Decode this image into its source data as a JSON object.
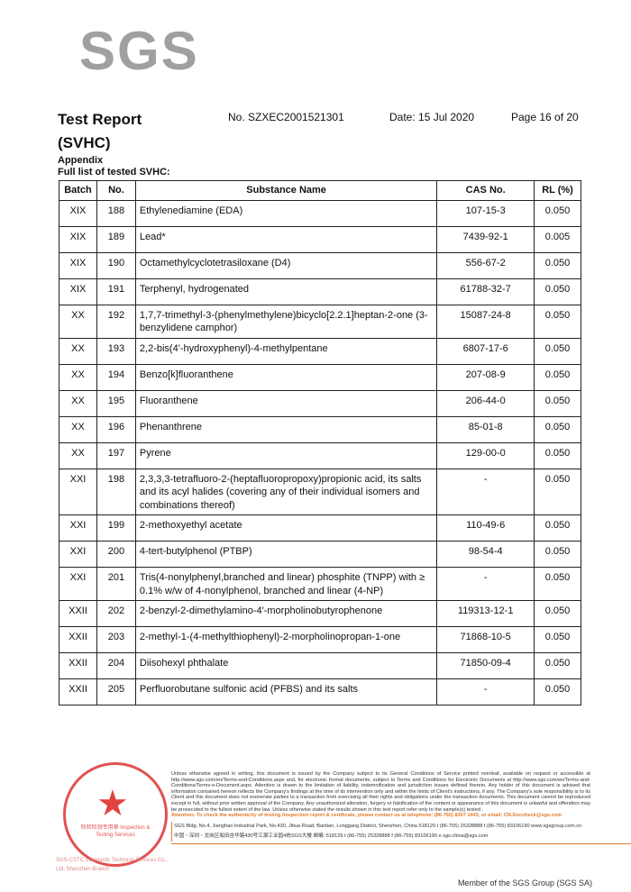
{
  "logo": "SGS",
  "header": {
    "title_line1": "Test Report",
    "title_line2": "(SVHC)",
    "report_no": "No. SZXEC2001521301",
    "date": "Date: 15 Jul 2020",
    "page": "Page 16 of 20"
  },
  "appendix": "Appendix",
  "list_title": "Full list of tested SVHC:",
  "table": {
    "columns": [
      "Batch",
      "No.",
      "Substance Name",
      "CAS No.",
      "RL (%)"
    ],
    "rows": [
      [
        "XIX",
        "188",
        "Ethylenediamine (EDA)",
        "107-15-3",
        "0.050"
      ],
      [
        "XIX",
        "189",
        "Lead*",
        "7439-92-1",
        "0.005"
      ],
      [
        "XIX",
        "190",
        "Octamethylcyclotetrasiloxane (D4)",
        "556-67-2",
        "0.050"
      ],
      [
        "XIX",
        "191",
        "Terphenyl, hydrogenated",
        "61788-32-7",
        "0.050"
      ],
      [
        "XX",
        "192",
        "1,7,7-trimethyl-3-(phenylmethylene)bicyclo[2.2.1]heptan-2-one (3-benzylidene camphor)",
        "15087-24-8",
        "0.050"
      ],
      [
        "XX",
        "193",
        "2,2-bis(4'-hydroxyphenyl)-4-methylpentane",
        "6807-17-6",
        "0.050"
      ],
      [
        "XX",
        "194",
        "Benzo[k]fluoranthene",
        "207-08-9",
        "0.050"
      ],
      [
        "XX",
        "195",
        "Fluoranthene",
        "206-44-0",
        "0.050"
      ],
      [
        "XX",
        "196",
        "Phenanthrene",
        "85-01-8",
        "0.050"
      ],
      [
        "XX",
        "197",
        "Pyrene",
        "129-00-0",
        "0.050"
      ],
      [
        "XXI",
        "198",
        "2,3,3,3-tetrafluoro-2-(heptafluoropropoxy)propionic acid, its salts and its acyl halides (covering any of their individual isomers and combinations thereof)",
        "-",
        "0.050"
      ],
      [
        "XXI",
        "199",
        "2-methoxyethyl acetate",
        "110-49-6",
        "0.050"
      ],
      [
        "XXI",
        "200",
        "4-tert-butylphenol (PTBP)",
        "98-54-4",
        "0.050"
      ],
      [
        "XXI",
        "201",
        "Tris(4-nonylphenyl,branched and linear) phosphite (TNPP) with ≥ 0.1% w/w of 4-nonylphenol, branched and linear (4-NP)",
        "-",
        "0.050"
      ],
      [
        "XXII",
        "202",
        "2-benzyl-2-dimethylamino-4'-morpholinobutyrophenone",
        "119313-12-1",
        "0.050"
      ],
      [
        "XXII",
        "203",
        "2-methyl-1-(4-methylthiophenyl)-2-morpholinopropan-1-one",
        "71868-10-5",
        "0.050"
      ],
      [
        "XXII",
        "204",
        "Diisohexyl phthalate",
        "71850-09-4",
        "0.050"
      ],
      [
        "XXII",
        "205",
        "Perfluorobutane sulfonic acid (PFBS) and its salts",
        "-",
        "0.050"
      ]
    ]
  },
  "footer": {
    "legal": "Unless otherwise agreed in writing, this document is issued by the Company subject to its General Conditions of Service printed overleaf, available on request or accessible at http://www.sgs.com/en/Terms-and-Conditions.aspx and, for electronic format documents, subject to Terms and Conditions for Electronic Documents at http://www.sgs.com/en/Terms-and-Conditions/Terms-e-Document.aspx. Attention is drawn to the limitation of liability, indemnification and jurisdiction issues defined therein. Any holder of this document is advised that information contained hereon reflects the Company's findings at the time of its intervention only and within the limits of Client's instructions, if any. The Company's sole responsibility is to its Client and this document does not exonerate parties to a transaction from exercising all their rights and obligations under the transaction documents. This document cannot be reproduced except in full, without prior written approval of the Company. Any unauthorized alteration, forgery or falsification of the content or appearance of this document is unlawful and offenders may be prosecuted to the fullest extent of the law. Unless otherwise stated the results shown in this test report refer only to the sample(s) tested .",
    "attention": "Attention: To check the authenticity of testing /inspection report & certificate, please contact us at telephone: (86-755) 8307 1443, or email: CN.Doccheck@sgs.com",
    "address_en": "SGS Bldg, No.4, Jianghao Industrial Park, No.430, Jihua Road, Bantian, Longgang District, Shenzhen, China 518129   t (86-755) 25328888   f (86-755) 83106190   www.sgsgroup.com.cn",
    "address_cn": "中国・深圳・龙岗区坂田吉华路430号江灏工业园4栋SGS大楼   邮编: 518129   t (86-755) 25328888   f (86-755) 83106190   e sgs.china@sgs.com",
    "member": "Member of the SGS Group (SGS SA)",
    "stamp_text": "检验检测专用章 Inspection & Testing Services",
    "company": "SGS-CSTC Standards Technical Services Co., Ltd. Shenzhen Branch"
  },
  "colors": {
    "accent": "#e07a2a",
    "stamp": "#d33333",
    "logo": "#a0a0a0"
  }
}
